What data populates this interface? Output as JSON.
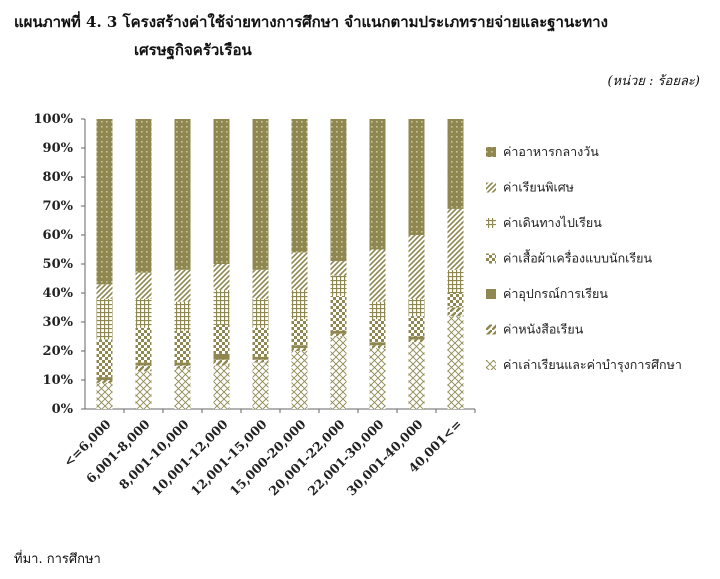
{
  "title_line1": "แผนภาพที่ 4. 3 โครงสร้างค่าใช้จ่ายทางการศึกษา จำแนกตามประเภทรายจ่ายและฐานะทาง",
  "title_line2": "เศรษฐกิจครัวเรือน",
  "unit": "(หน่วย : ร้อยละ)",
  "source": "ที่มา. การศึกษา",
  "chart_data": {
    "type": "bar",
    "stacked": true,
    "categories": [
      "<=6,000",
      "6,001-8,000",
      "8,001-10,000",
      "10,001-12,000",
      "12,001-15,000",
      "15,000-20,000",
      "20,001-22,000",
      "22,001-30,000",
      "30,001-40,000",
      "40,001<="
    ],
    "y_ticks": [
      "0%",
      "10%",
      "20%",
      "30%",
      "40%",
      "50%",
      "60%",
      "70%",
      "80%",
      "90%",
      "100%"
    ],
    "ylim": [
      0,
      100
    ],
    "legend_position": "right",
    "grid": false,
    "base_color": "#8f8750",
    "series": [
      {
        "name": "ค่าเล่าเรียนและค่าบำรุงการศึกษา",
        "pattern": "cross",
        "values": [
          9,
          13,
          14,
          15,
          16,
          20,
          25,
          21,
          23,
          32
        ]
      },
      {
        "name": "ค่าหนังสือเรียน",
        "pattern": "diag",
        "values": [
          1,
          2,
          1,
          2,
          1,
          1,
          1,
          1,
          1,
          3
        ]
      },
      {
        "name": "ค่าอุปกรณ์การเรียน",
        "pattern": "solid",
        "values": [
          1,
          1,
          1,
          2,
          1,
          1,
          1,
          1,
          1,
          0
        ]
      },
      {
        "name": "ค่าเสื้อผ้าเครื่องแบบนักเรียน",
        "pattern": "check",
        "values": [
          13,
          12,
          11,
          10,
          10,
          9,
          12,
          8,
          7,
          5
        ]
      },
      {
        "name": "ค่าเดินทางไปเรียน",
        "pattern": "grid",
        "values": [
          14,
          10,
          10,
          12,
          10,
          10,
          7,
          6,
          6,
          8
        ]
      },
      {
        "name": "ค่าเรียนพิเศษ",
        "pattern": "stripe",
        "values": [
          5,
          9,
          11,
          9,
          10,
          13,
          5,
          18,
          22,
          21
        ]
      },
      {
        "name": "ค่าอาหารกลางวัน",
        "pattern": "dots",
        "values": [
          57,
          53,
          52,
          50,
          52,
          46,
          49,
          45,
          40,
          31
        ]
      }
    ]
  }
}
